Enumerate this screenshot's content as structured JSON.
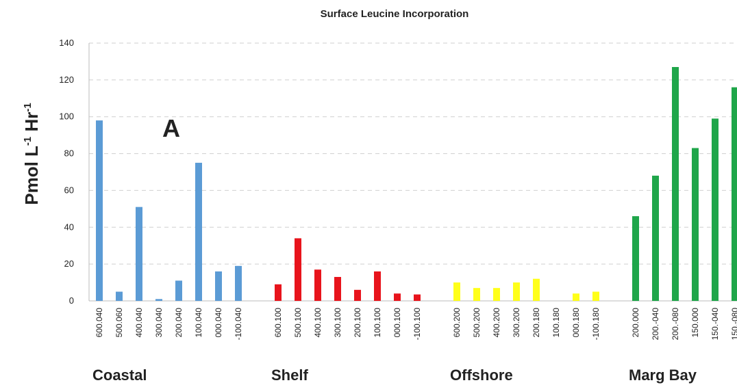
{
  "chart_data": {
    "type": "bar",
    "title": "Surface Leucine Incorporation",
    "y_label_parts": [
      "Pmol L",
      "-1",
      " Hr",
      "-1"
    ],
    "annotation": "A",
    "ylim": [
      0,
      140
    ],
    "yticks": [
      0,
      20,
      40,
      60,
      80,
      100,
      120,
      140
    ],
    "grid": true,
    "groups": [
      {
        "name": "Coastal",
        "color": "#5b9bd5",
        "categories": [
          "600.040",
          "500.060",
          "400.040",
          "300.040",
          "200.040",
          "100.040",
          "000.040",
          "-100.040"
        ],
        "values": [
          98,
          5,
          51,
          1,
          11,
          75,
          16,
          19
        ]
      },
      {
        "name": "Shelf",
        "color": "#e8141c",
        "categories": [
          "600.100",
          "500.100",
          "400.100",
          "300.100",
          "200.100",
          "100.100",
          "000.100",
          "-100.100"
        ],
        "values": [
          9,
          34,
          17,
          13,
          6,
          16,
          4,
          3.5
        ]
      },
      {
        "name": "Offshore",
        "color": "#ffff1a",
        "categories": [
          "600.200",
          "500.200",
          "400.200",
          "300.200",
          "200.180",
          "100.180",
          "000.180",
          "-100.180"
        ],
        "values": [
          10,
          7,
          7,
          10,
          12,
          null,
          4,
          5
        ]
      },
      {
        "name": "Marg Bay",
        "color": "#1fa64a",
        "categories": [
          "200.000",
          "200.-040",
          "200.-080",
          "150.000",
          "150.-040",
          "150.-080"
        ],
        "values": [
          46,
          68,
          127,
          83,
          99,
          116
        ]
      }
    ]
  }
}
